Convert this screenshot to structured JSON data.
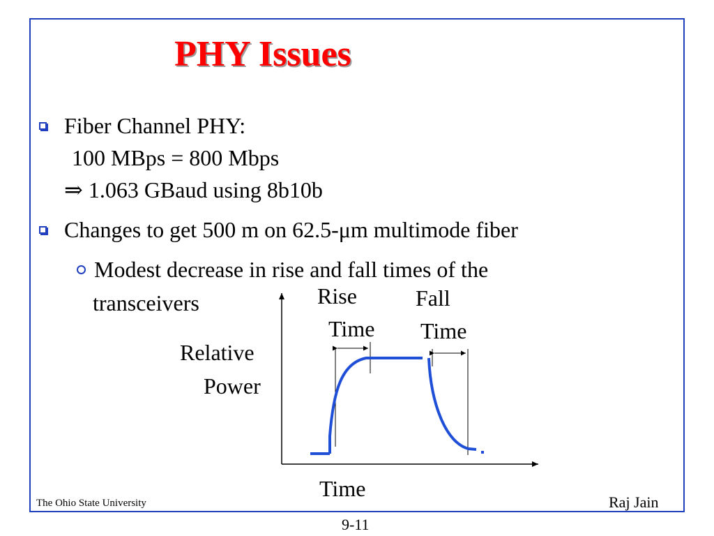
{
  "slide": {
    "title": "PHY Issues",
    "bullets": [
      {
        "line1": "Fiber Channel PHY:",
        "line2": "100 MBps = 800 Mbps",
        "line3_symbol": "⇒",
        "line3_text": "1.063 GBaud using 8b10b"
      },
      {
        "text": "Changes to get 500 m on 62.5-μm multimode fiber"
      }
    ],
    "sub_bullets": [
      {
        "line1": "Modest decrease in rise and fall times of the",
        "line2": "transceivers"
      }
    ]
  },
  "diagram": {
    "y_label_line1": "Relative",
    "y_label_line2": "Power",
    "x_label": "Time",
    "rise_label_line1": "Rise",
    "rise_label_line2": "Time",
    "fall_label_line1": "Fall",
    "fall_label_line2": "Time",
    "curve_color": "#1f4fd6"
  },
  "footer": {
    "left": "The Ohio State University",
    "right": "Raj Jain",
    "page_number": "9-11"
  }
}
